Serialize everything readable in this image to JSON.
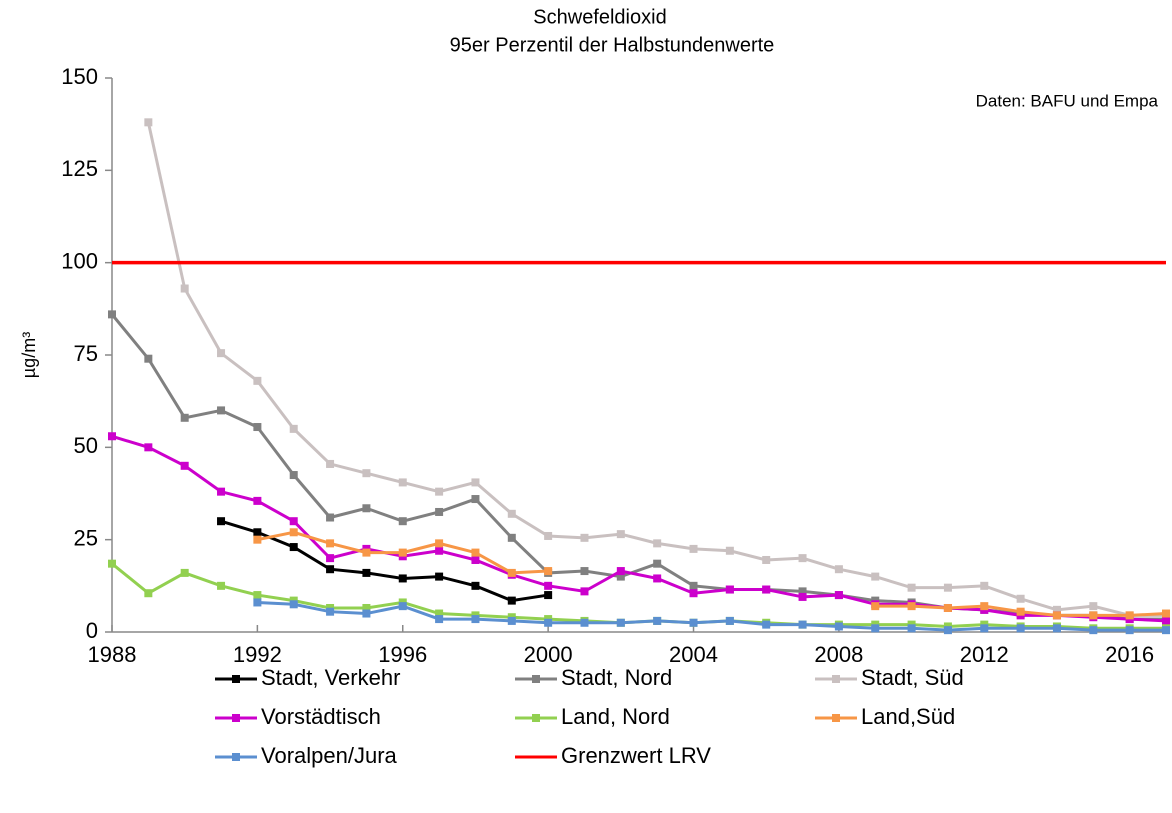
{
  "chart_data": {
    "type": "line",
    "title": "Schwefeldioxid",
    "subtitle": "95er Perzentil der Halbstundenwerte",
    "y_label": "µg/m³",
    "annotation": "Daten: BAFU und Empa",
    "x": [
      1988,
      1989,
      1990,
      1991,
      1992,
      1993,
      1994,
      1995,
      1996,
      1997,
      1998,
      1999,
      2000,
      2001,
      2002,
      2003,
      2004,
      2005,
      2006,
      2007,
      2008,
      2009,
      2010,
      2011,
      2012,
      2013,
      2014,
      2015,
      2016,
      2017
    ],
    "xlim": [
      1988,
      2017
    ],
    "xticks": [
      1988,
      1992,
      1996,
      2000,
      2004,
      2008,
      2012,
      2016
    ],
    "ylim": [
      0,
      150
    ],
    "yticks": [
      0,
      25,
      50,
      75,
      100,
      125,
      150
    ],
    "series": [
      {
        "name": "Stadt, Verkehr",
        "color": "#000000",
        "marker": true,
        "values": [
          null,
          null,
          null,
          30,
          27,
          23,
          17,
          16,
          14.5,
          15,
          12.5,
          8.5,
          10,
          null,
          null,
          null,
          null,
          null,
          null,
          null,
          null,
          null,
          null,
          null,
          null,
          null,
          null,
          null,
          null,
          null
        ]
      },
      {
        "name": "Stadt, Nord",
        "color": "#808080",
        "marker": true,
        "values": [
          86,
          74,
          58,
          60,
          55.5,
          42.5,
          31,
          33.5,
          30,
          32.5,
          36,
          25.5,
          16,
          16.5,
          15,
          18.5,
          12.5,
          11.5,
          11.5,
          11,
          10,
          8.5,
          8,
          6.5,
          6,
          5,
          4.5,
          4.5,
          3.5,
          3.5
        ]
      },
      {
        "name": "Stadt, Süd",
        "color": "#c9c0c0",
        "marker": true,
        "values": [
          null,
          138,
          93,
          75.5,
          68,
          55,
          45.5,
          43,
          40.5,
          38,
          40.5,
          32,
          26,
          25.5,
          26.5,
          24,
          22.5,
          22,
          19.5,
          20,
          17,
          15,
          12,
          12,
          12.5,
          9,
          6,
          7,
          4.5,
          4.5
        ]
      },
      {
        "name": "Vorstädtisch",
        "color": "#cc00cc",
        "marker": true,
        "values": [
          53,
          50,
          45,
          38,
          35.5,
          30,
          20,
          22.5,
          20.5,
          22,
          19.5,
          15.5,
          12.5,
          11,
          16.5,
          14.5,
          10.5,
          11.5,
          11.5,
          9.5,
          10,
          7.5,
          7.5,
          6.5,
          6,
          4.5,
          4.5,
          4,
          3.5,
          3
        ]
      },
      {
        "name": "Land, Nord",
        "color": "#92d050",
        "marker": true,
        "values": [
          18.5,
          10.5,
          16,
          12.5,
          10,
          8.5,
          6.5,
          6.5,
          8,
          5,
          4.5,
          4,
          3.5,
          3,
          2.5,
          3,
          2.5,
          3,
          2.5,
          2,
          2,
          2,
          2,
          1.5,
          2,
          1.5,
          1.5,
          1,
          1,
          1
        ]
      },
      {
        "name": "Land,Süd",
        "color": "#f79646",
        "marker": true,
        "values": [
          null,
          null,
          null,
          null,
          25,
          27,
          24,
          21.5,
          21.5,
          24,
          21.5,
          16,
          16.5,
          null,
          null,
          null,
          null,
          null,
          null,
          null,
          null,
          7,
          7,
          6.5,
          7,
          5.5,
          4.5,
          4.5,
          4.5,
          5
        ]
      },
      {
        "name": "Voralpen/Jura",
        "color": "#5b8fd0",
        "marker": true,
        "values": [
          null,
          null,
          null,
          null,
          8,
          7.5,
          5.5,
          5,
          7,
          3.5,
          3.5,
          3,
          2.5,
          2.5,
          2.5,
          3,
          2.5,
          3,
          2,
          2,
          1.5,
          1,
          1,
          0.5,
          1,
          1,
          1,
          0.5,
          0.5,
          0.5
        ]
      },
      {
        "name": "Grenzwert LRV",
        "color": "#ff0000",
        "marker": false,
        "values": [
          100,
          100,
          100,
          100,
          100,
          100,
          100,
          100,
          100,
          100,
          100,
          100,
          100,
          100,
          100,
          100,
          100,
          100,
          100,
          100,
          100,
          100,
          100,
          100,
          100,
          100,
          100,
          100,
          100,
          100
        ]
      }
    ]
  }
}
